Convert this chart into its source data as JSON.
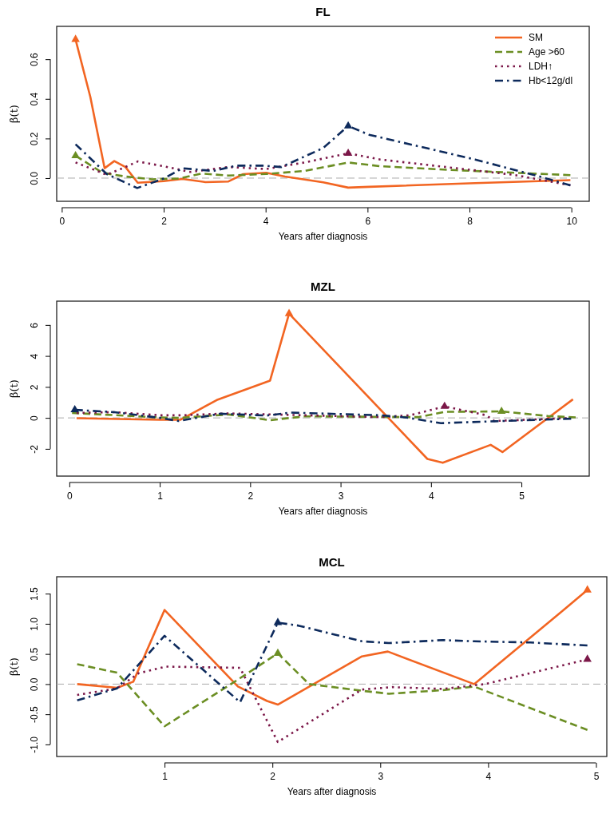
{
  "chart_data": [
    {
      "type": "line",
      "title": "FL",
      "xlabel": "Years after diagnosis",
      "ylabel": "β(t)",
      "xlim": [
        -0.1,
        10.35
      ],
      "ylim": [
        -0.117,
        0.766
      ],
      "xticks": [
        0,
        2,
        4,
        6,
        8,
        10
      ],
      "yticks": [
        {
          "value": 0,
          "label": "0.0"
        },
        0.2,
        0.4,
        0.6
      ],
      "legend": "top right",
      "grid": false,
      "ref_lines": [
        {
          "axis": "y",
          "value": 0,
          "color": "#aaaaaa",
          "line_style": "dashed"
        }
      ],
      "series": [
        {
          "name": "SM",
          "color": "#f26522",
          "line_style": "solid",
          "x": [
            0.27,
            0.56,
            0.84,
            1.03,
            1.25,
            1.49,
            2.0,
            2.37,
            2.82,
            3.27,
            3.56,
            4.01,
            4.38,
            5.13,
            5.62,
            6.03,
            8.11,
            9.98
          ],
          "values": [
            0.7,
            0.41,
            0.05,
            0.086,
            0.056,
            -0.023,
            -0.015,
            -0.004,
            -0.02,
            -0.017,
            0.02,
            0.027,
            0.008,
            -0.021,
            -0.048,
            -0.044,
            -0.025,
            -0.01
          ]
        },
        {
          "name": "Age >60",
          "color": "#6b8e23",
          "line_style": "dashed",
          "x": [
            0.27,
            0.8,
            1.25,
            1.77,
            2.3,
            2.74,
            3.27,
            4.01,
            4.76,
            5.62,
            6.25,
            7.74,
            9.98
          ],
          "values": [
            0.113,
            0.027,
            0.008,
            -0.006,
            -0.002,
            0.023,
            0.013,
            0.021,
            0.036,
            0.079,
            0.06,
            0.04,
            0.015
          ]
        },
        {
          "name": "LDH↑",
          "color": "#7b1748",
          "line_style": "dotted",
          "x": [
            0.27,
            0.88,
            1.25,
            1.49,
            2.0,
            2.52,
            3.27,
            4.01,
            4.76,
            5.62,
            6.25,
            7.74,
            8.86,
            9.98
          ],
          "values": [
            0.079,
            0.017,
            0.056,
            0.084,
            0.06,
            0.031,
            0.056,
            0.046,
            0.079,
            0.125,
            0.094,
            0.05,
            0.017,
            -0.036
          ]
        },
        {
          "name": "Hb<12g/dl",
          "color": "#0d2a5c",
          "line_style": "dashdot",
          "x": [
            0.27,
            0.88,
            1.48,
            2.0,
            2.37,
            2.97,
            3.42,
            3.94,
            4.31,
            5.13,
            5.62,
            6.03,
            8.11,
            9.38,
            9.98
          ],
          "values": [
            0.171,
            0.021,
            -0.05,
            -0.002,
            0.05,
            0.036,
            0.063,
            0.063,
            0.056,
            0.152,
            0.263,
            0.219,
            0.094,
            0.008,
            -0.036
          ]
        },
        {
          "type": "scatter",
          "marker": "triangle",
          "x": [
            0.27,
            0.27,
            5.62,
            5.62
          ],
          "values": [
            0.7,
            0.113,
            0.125,
            0.263
          ],
          "colors": [
            "#f26522",
            "#6b8e23",
            "#7b1748",
            "#0d2a5c"
          ]
        }
      ]
    },
    {
      "type": "line",
      "title": "MZL",
      "xlabel": "Years after diagnosis",
      "ylabel": "β(t)",
      "xlim": [
        -0.14,
        5.75
      ],
      "ylim": [
        -3.76,
        7.54
      ],
      "xticks": [
        0,
        1,
        2,
        3,
        4,
        5
      ],
      "yticks": [
        -2,
        0,
        2,
        4,
        6
      ],
      "grid": false,
      "ref_lines": [
        {
          "axis": "y",
          "value": 0,
          "color": "#aaaaaa",
          "line_style": "dashed"
        }
      ],
      "series": [
        {
          "color": "#f26522",
          "line_style": "solid",
          "x": [
            0.08,
            1.0,
            1.23,
            1.63,
            2.22,
            2.43,
            3.96,
            4.13,
            4.66,
            4.79,
            5.57
          ],
          "values": [
            -0.02,
            -0.12,
            -0.12,
            1.15,
            2.41,
            6.73,
            -2.65,
            -2.9,
            -1.74,
            -2.21,
            1.2
          ]
        },
        {
          "color": "#6b8e23",
          "line_style": "dashed",
          "x": [
            0.03,
            0.92,
            1.21,
            1.76,
            2.22,
            2.6,
            3.44,
            3.86,
            4.15,
            4.78,
            5.29,
            5.6
          ],
          "values": [
            0.32,
            0.05,
            0,
            0.22,
            -0.15,
            0.1,
            0.07,
            0.05,
            0.39,
            0.42,
            0.12,
            0.03
          ]
        },
        {
          "color": "#7b1748",
          "line_style": "dotted",
          "x": [
            0.08,
            0.5,
            1.0,
            1.25,
            1.76,
            2.6,
            3.44,
            3.77,
            4.15,
            4.61,
            4.7,
            5.5
          ],
          "values": [
            0.32,
            0.37,
            0.17,
            0.17,
            0.29,
            0.17,
            0.05,
            0.17,
            0.74,
            0.17,
            -0.2,
            -0.02
          ]
        },
        {
          "color": "#0d2a5c",
          "line_style": "dashdot",
          "x": [
            0.06,
            0.5,
            1.0,
            1.21,
            1.67,
            2.18,
            2.45,
            3.44,
            3.73,
            4.11,
            4.7,
            5.55
          ],
          "values": [
            0.52,
            0.37,
            0,
            -0.2,
            0.27,
            0.15,
            0.34,
            0.17,
            0.02,
            -0.34,
            -0.22,
            -0.05
          ]
        },
        {
          "type": "scatter",
          "marker": "triangle",
          "x": [
            0.06,
            2.43,
            4.15,
            4.78
          ],
          "values": [
            0.52,
            6.73,
            0.74,
            0.42
          ],
          "colors": [
            "#0d2a5c",
            "#f26522",
            "#7b1748",
            "#6b8e23"
          ]
        }
      ]
    },
    {
      "type": "line",
      "title": "MCL",
      "xlabel": "Years after diagnosis",
      "ylabel": "β(t)",
      "xlim": [
        0.0,
        5.1
      ],
      "ylim": [
        -1.2,
        1.78
      ],
      "xticks": [
        1,
        2,
        3,
        4,
        5
      ],
      "yticks": [
        {
          "value": -1,
          "label": "-1.0"
        },
        -0.5,
        {
          "value": 0,
          "label": "0.0"
        },
        0.5,
        {
          "value": 1,
          "label": "1.0"
        },
        1.5
      ],
      "grid": false,
      "ref_lines": [
        {
          "axis": "y",
          "value": 0,
          "color": "#aaaaaa",
          "line_style": "dashed"
        }
      ],
      "series": [
        {
          "color": "#f26522",
          "line_style": "solid",
          "x": [
            0.19,
            0.56,
            0.71,
            1.0,
            1.68,
            1.95,
            2.05,
            2.83,
            3.07,
            3.87,
            4.66,
            4.92
          ],
          "values": [
            0,
            -0.06,
            0.04,
            1.23,
            -0.04,
            -0.28,
            -0.34,
            0.46,
            0.54,
            0,
            1.17,
            1.56
          ]
        },
        {
          "color": "#6b8e23",
          "line_style": "dashed",
          "x": [
            0.19,
            0.56,
            1.0,
            1.65,
            2.05,
            2.34,
            2.83,
            3.08,
            3.58,
            3.87,
            4.92
          ],
          "values": [
            0.33,
            0.19,
            -0.7,
            0.04,
            0.51,
            0,
            -0.11,
            -0.16,
            -0.1,
            -0.04,
            -0.76
          ]
        },
        {
          "color": "#7b1748",
          "line_style": "dotted",
          "x": [
            0.19,
            0.56,
            0.76,
            1.01,
            1.7,
            2.05,
            2.83,
            3.11,
            3.58,
            3.97,
            4.92
          ],
          "values": [
            -0.18,
            -0.07,
            0.18,
            0.29,
            0.27,
            -0.96,
            -0.09,
            -0.05,
            -0.08,
            0,
            0.41
          ]
        },
        {
          "color": "#0d2a5c",
          "line_style": "dashdot",
          "x": [
            0.19,
            0.56,
            1.0,
            1.7,
            2.05,
            2.24,
            2.83,
            3.08,
            3.58,
            3.87,
            4.39,
            4.92
          ],
          "values": [
            -0.27,
            -0.07,
            0.8,
            -0.3,
            1.02,
            0.97,
            0.71,
            0.68,
            0.73,
            0.71,
            0.69,
            0.64
          ]
        },
        {
          "type": "scatter",
          "marker": "triangle",
          "x": [
            2.05,
            2.05,
            4.92,
            4.92
          ],
          "values": [
            0.51,
            1.02,
            1.56,
            0.41
          ],
          "colors": [
            "#6b8e23",
            "#0d2a5c",
            "#f26522",
            "#7b1748"
          ]
        }
      ]
    }
  ]
}
